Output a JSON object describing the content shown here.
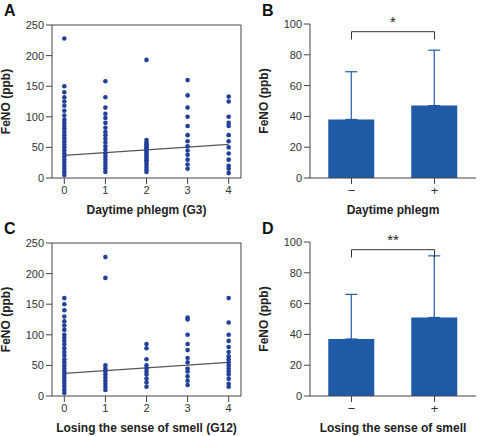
{
  "chart_data": [
    {
      "panel": "A",
      "type": "scatter",
      "xlabel": "Daytime phlegm (G3)",
      "ylabel": "FeNO (ppb)",
      "xlim": [
        -0.3,
        4.3
      ],
      "xticks": [
        0,
        1,
        2,
        3,
        4
      ],
      "ylim": [
        0,
        250
      ],
      "yticks": [
        0,
        50,
        100,
        150,
        200,
        250
      ],
      "series": [
        {
          "type": "scatter",
          "marker": "circle",
          "color": "#22409a",
          "x": [
            0,
            0,
            0,
            0,
            0,
            0,
            0,
            0,
            0,
            0,
            0,
            0,
            0,
            0,
            0,
            0,
            0,
            0,
            0,
            0,
            0,
            0,
            0,
            0,
            0,
            0,
            0,
            1,
            1,
            1,
            1,
            1,
            1,
            1,
            1,
            1,
            1,
            1,
            1,
            1,
            1,
            1,
            1,
            1,
            1,
            1,
            1,
            2,
            2,
            2,
            2,
            2,
            2,
            2,
            2,
            2,
            2,
            2,
            2,
            2,
            2,
            2,
            2,
            2,
            2,
            3,
            3,
            3,
            3,
            3,
            3,
            3,
            3,
            3,
            3,
            3,
            3,
            3,
            4,
            4,
            4,
            4,
            4,
            4,
            4,
            4,
            4,
            4,
            4,
            4,
            4
          ],
          "values": [
            228,
            150,
            140,
            132,
            125,
            118,
            110,
            102,
            95,
            90,
            85,
            80,
            75,
            70,
            65,
            60,
            55,
            50,
            45,
            40,
            35,
            30,
            25,
            20,
            15,
            10,
            5,
            158,
            132,
            115,
            105,
            98,
            90,
            82,
            75,
            70,
            64,
            58,
            52,
            46,
            40,
            35,
            30,
            25,
            20,
            15,
            10,
            193,
            62,
            58,
            55,
            52,
            50,
            47,
            44,
            41,
            38,
            35,
            32,
            29,
            26,
            22,
            18,
            14,
            10,
            160,
            135,
            115,
            100,
            85,
            70,
            60,
            52,
            45,
            38,
            30,
            22,
            15,
            133,
            125,
            100,
            90,
            85,
            70,
            60,
            50,
            40,
            30,
            20,
            15,
            8
          ]
        },
        {
          "type": "line",
          "color": "#555555",
          "x": [
            0,
            4
          ],
          "values": [
            37,
            55
          ]
        }
      ]
    },
    {
      "panel": "B",
      "type": "bar",
      "xlabel": "Daytime phlegm",
      "ylabel": "FeNO (ppb)",
      "categories": [
        "−",
        "+"
      ],
      "values": [
        38,
        47
      ],
      "errors": [
        31,
        36
      ],
      "color": "#1f5aa6",
      "ylim": [
        0,
        100
      ],
      "yticks": [
        0,
        20,
        40,
        60,
        80,
        100
      ],
      "annotation": "*"
    },
    {
      "panel": "C",
      "type": "scatter",
      "xlabel": "Losing the sense of smell (G12)",
      "ylabel": "FeNO (ppb)",
      "xlim": [
        -0.3,
        4.3
      ],
      "xticks": [
        0,
        1,
        2,
        3,
        4
      ],
      "ylim": [
        0,
        250
      ],
      "yticks": [
        0,
        50,
        100,
        150,
        200,
        250
      ],
      "series": [
        {
          "type": "scatter",
          "marker": "circle",
          "color": "#22409a",
          "x": [
            0,
            0,
            0,
            0,
            0,
            0,
            0,
            0,
            0,
            0,
            0,
            0,
            0,
            0,
            0,
            0,
            0,
            0,
            0,
            0,
            0,
            0,
            0,
            0,
            0,
            0,
            1,
            1,
            1,
            1,
            1,
            1,
            1,
            1,
            1,
            1,
            1,
            2,
            2,
            2,
            2,
            2,
            2,
            2,
            2,
            2,
            2,
            3,
            3,
            3,
            3,
            3,
            3,
            3,
            3,
            3,
            3,
            3,
            3,
            4,
            4,
            4,
            4,
            4,
            4,
            4,
            4,
            4,
            4,
            4,
            4,
            4,
            4,
            4,
            4
          ],
          "values": [
            160,
            150,
            140,
            130,
            122,
            115,
            108,
            100,
            95,
            90,
            84,
            78,
            72,
            66,
            60,
            55,
            50,
            45,
            40,
            35,
            30,
            25,
            20,
            15,
            10,
            5,
            227,
            193,
            50,
            45,
            40,
            35,
            30,
            25,
            20,
            15,
            10,
            85,
            78,
            60,
            50,
            45,
            40,
            35,
            28,
            22,
            15,
            128,
            125,
            100,
            85,
            75,
            62,
            55,
            45,
            40,
            32,
            25,
            18,
            160,
            120,
            100,
            90,
            80,
            72,
            65,
            60,
            55,
            50,
            45,
            40,
            35,
            28,
            20,
            15
          ]
        },
        {
          "type": "line",
          "color": "#555555",
          "x": [
            0,
            4
          ],
          "values": [
            37,
            55
          ]
        }
      ]
    },
    {
      "panel": "D",
      "type": "bar",
      "xlabel": "Losing the sense of smell",
      "ylabel": "FeNO (ppb)",
      "categories": [
        "−",
        "+"
      ],
      "values": [
        37,
        51
      ],
      "errors": [
        29,
        40
      ],
      "color": "#1f5aa6",
      "ylim": [
        0,
        100
      ],
      "yticks": [
        0,
        20,
        40,
        60,
        80,
        100
      ],
      "annotation": "**"
    }
  ]
}
